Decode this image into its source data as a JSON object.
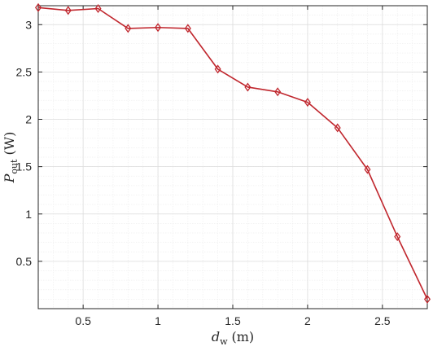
{
  "chart_data": {
    "type": "line",
    "title": "",
    "xlabel": {
      "main": "d",
      "sub": "w",
      "unit": "(m)"
    },
    "ylabel": {
      "main": "P",
      "sub": "out",
      "unit": "(W)"
    },
    "xlim": [
      0.2,
      2.8
    ],
    "ylim": [
      0.0,
      3.2
    ],
    "x_ticks": [
      0.5,
      1,
      1.5,
      2,
      2.5
    ],
    "x_tick_labels": [
      "0.5",
      "1",
      "1.5",
      "2",
      "2.5"
    ],
    "y_ticks": [
      0.5,
      1,
      1.5,
      2,
      2.5,
      3
    ],
    "y_tick_labels": [
      "0.5",
      "1",
      "1.5",
      "2",
      "2.5",
      "3"
    ],
    "grid": true,
    "minor_grid": true,
    "series": [
      {
        "color": "#c0262d",
        "marker": "diamond",
        "x": [
          0.2,
          0.4,
          0.6,
          0.8,
          1.0,
          1.2,
          1.4,
          1.6,
          1.8,
          2.0,
          2.2,
          2.4,
          2.6,
          2.8
        ],
        "y": [
          3.18,
          3.15,
          3.17,
          2.96,
          2.97,
          2.96,
          2.53,
          2.34,
          2.29,
          2.18,
          1.91,
          1.47,
          0.76,
          0.1
        ]
      }
    ]
  }
}
